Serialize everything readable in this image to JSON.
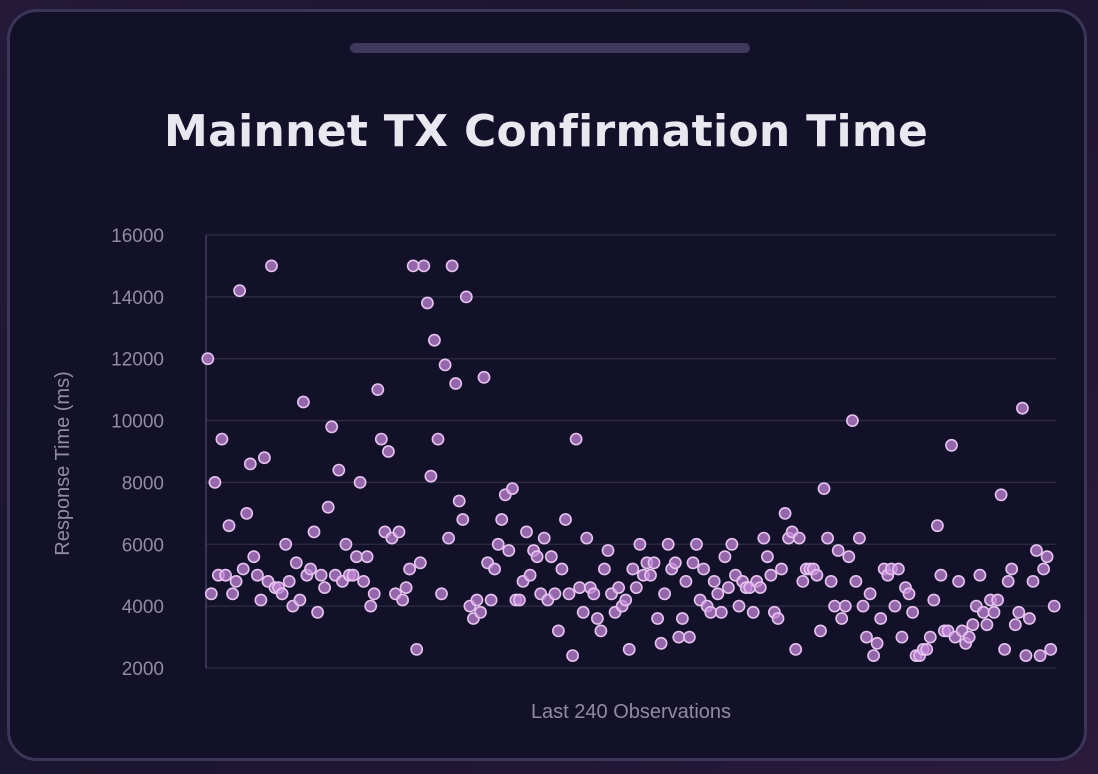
{
  "window": {
    "handle": "drag-handle"
  },
  "chart_data": {
    "type": "scatter",
    "title": "Mainnet TX Confirmation Time",
    "xlabel": "Last 240 Observations",
    "ylabel": "Response Time (ms)",
    "ylim": [
      2000,
      16000
    ],
    "yticks": [
      2000,
      4000,
      6000,
      8000,
      10000,
      12000,
      14000,
      16000
    ],
    "ytick_labels": [
      "2000",
      "4000",
      "6000",
      "8000",
      "10000",
      "12000",
      "14000",
      "16000"
    ],
    "grid": true,
    "legend": "none",
    "colors": {
      "point_fill": "#c084d6",
      "point_stroke": "#e7c4f0",
      "grid": "#2f2c44",
      "background": "#13112a"
    },
    "n": 240,
    "values": [
      12000,
      4400,
      8000,
      5000,
      9400,
      5000,
      6600,
      4400,
      4800,
      14200,
      5200,
      7000,
      8600,
      5600,
      5000,
      4200,
      8800,
      4800,
      15000,
      4600,
      4600,
      4400,
      6000,
      4800,
      4000,
      5400,
      4200,
      10600,
      5000,
      5200,
      6400,
      3800,
      5000,
      4600,
      7200,
      9800,
      5000,
      8400,
      4800,
      6000,
      5000,
      5000,
      5600,
      8000,
      4800,
      5600,
      4000,
      4400,
      11000,
      9400,
      6400,
      9000,
      6200,
      4400,
      6400,
      4200,
      4600,
      5200,
      15000,
      2600,
      5400,
      15000,
      13800,
      8200,
      12600,
      9400,
      4400,
      11800,
      6200,
      15000,
      11200,
      7400,
      6800,
      14000,
      4000,
      3600,
      4200,
      3800,
      11400,
      5400,
      4200,
      5200,
      6000,
      6800,
      7600,
      5800,
      7800,
      4200,
      4200,
      4800,
      6400,
      5000,
      5800,
      5600,
      4400,
      6200,
      4200,
      5600,
      4400,
      3200,
      5200,
      6800,
      4400,
      2400,
      9400,
      4600,
      3800,
      6200,
      4600,
      4400,
      3600,
      3200,
      5200,
      5800,
      4400,
      3800,
      4600,
      4000,
      4200,
      2600,
      5200,
      4600,
      6000,
      5000,
      5400,
      5000,
      5400,
      3600,
      2800,
      4400,
      6000,
      5200,
      5400,
      3000,
      3600,
      4800,
      3000,
      5400,
      6000,
      4200,
      5200,
      4000,
      3800,
      4800,
      4400,
      3800,
      5600,
      4600,
      6000,
      5000,
      4000,
      4800,
      4600,
      4600,
      3800,
      4800,
      4600,
      6200,
      5600,
      5000,
      3800,
      3600,
      5200,
      7000,
      6200,
      6400,
      2600,
      6200,
      4800,
      5200,
      5200,
      5200,
      5000,
      3200,
      7800,
      6200,
      4800,
      4000,
      5800,
      3600,
      4000,
      5600,
      10000,
      4800,
      6200,
      4000,
      3000,
      4400,
      2400,
      2800,
      3600,
      5200,
      5000,
      5200,
      4000,
      5200,
      3000,
      4600,
      4400,
      3800,
      2400,
      2400,
      2600,
      2600,
      3000,
      4200,
      6600,
      5000,
      3200,
      3200,
      9200,
      3000,
      4800,
      3200,
      2800,
      3000,
      3400,
      4000,
      5000,
      3800,
      3400,
      4200,
      3800,
      4200,
      7600,
      2600,
      4800,
      5200,
      3400,
      3800,
      10400,
      2400,
      3600,
      4800,
      5800,
      2400,
      5200,
      5600,
      2600,
      4000
    ]
  }
}
